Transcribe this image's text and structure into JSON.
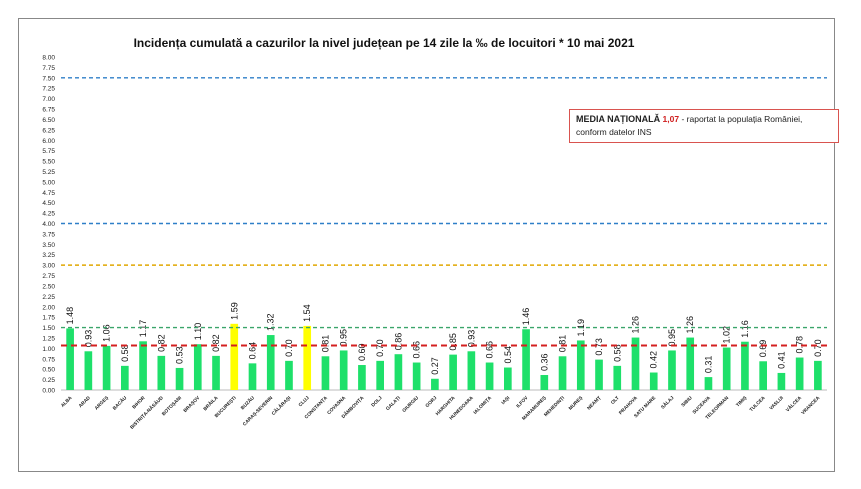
{
  "chart_data": {
    "type": "bar",
    "title": "Incidența cumulată a cazurilor la nivel județean pe 14 zile la ‰ de locuitori *  10 mai 2021",
    "xlabel": "",
    "ylabel": "",
    "ylim": [
      0,
      8
    ],
    "ytick_step": 0.25,
    "grid": false,
    "categories": [
      "ALBA",
      "ARAD",
      "ARGEȘ",
      "BACĂU",
      "BIHOR",
      "BISTRIȚA-NĂSĂUD",
      "BOTOȘANI",
      "BRAȘOV",
      "BRĂILA",
      "BUCUREȘTI",
      "BUZĂU",
      "CARAȘ-SEVERIN",
      "CĂLĂRAȘI",
      "CLUJ",
      "CONSTANȚA",
      "COVASNA",
      "DÂMBOVIȚA",
      "DOLJ",
      "GALAȚI",
      "GIURGIU",
      "GORJ",
      "HARGHITA",
      "HUNEDOARA",
      "IALOMIȚA",
      "IAȘI",
      "ILFOV",
      "MARAMUREȘ",
      "MEHEDINȚI",
      "MUREȘ",
      "NEAMȚ",
      "OLT",
      "PRAHOVA",
      "SATU MARE",
      "SĂLAJ",
      "SIBIU",
      "SUCEAVA",
      "TELEORMAN",
      "TIMIȘ",
      "TULCEA",
      "VASLUI",
      "VÂLCEA",
      "VRANCEA"
    ],
    "values": [
      1.48,
      0.93,
      1.06,
      0.58,
      1.17,
      0.82,
      0.53,
      1.1,
      0.82,
      1.59,
      0.64,
      1.32,
      0.7,
      1.54,
      0.81,
      0.95,
      0.6,
      0.7,
      0.86,
      0.66,
      0.27,
      0.85,
      0.93,
      0.66,
      0.54,
      1.46,
      0.36,
      0.81,
      1.19,
      0.73,
      0.58,
      1.26,
      0.42,
      0.95,
      1.26,
      0.31,
      1.02,
      1.16,
      0.69,
      0.41,
      0.78,
      0.7
    ],
    "highlighted": [
      "BUCUREȘTI",
      "CLUJ"
    ],
    "reference_lines": [
      {
        "value": 7.5,
        "color": "#2e7fc8"
      },
      {
        "value": 4.0,
        "color": "#2e7fc8"
      },
      {
        "value": 3.0,
        "color": "#e0a800"
      },
      {
        "value": 1.5,
        "color": "#3aa56a"
      },
      {
        "value": 1.07,
        "color": "#d42020"
      }
    ],
    "colors": {
      "bar": "#1ee06a",
      "highlight": "#ffff00"
    },
    "legend": {
      "label": "MEDIA NAȚIONALĂ",
      "value": "1,07",
      "text": "- raportat la populația României,",
      "text2": "conform datelor INS",
      "placement": "top-right"
    }
  }
}
